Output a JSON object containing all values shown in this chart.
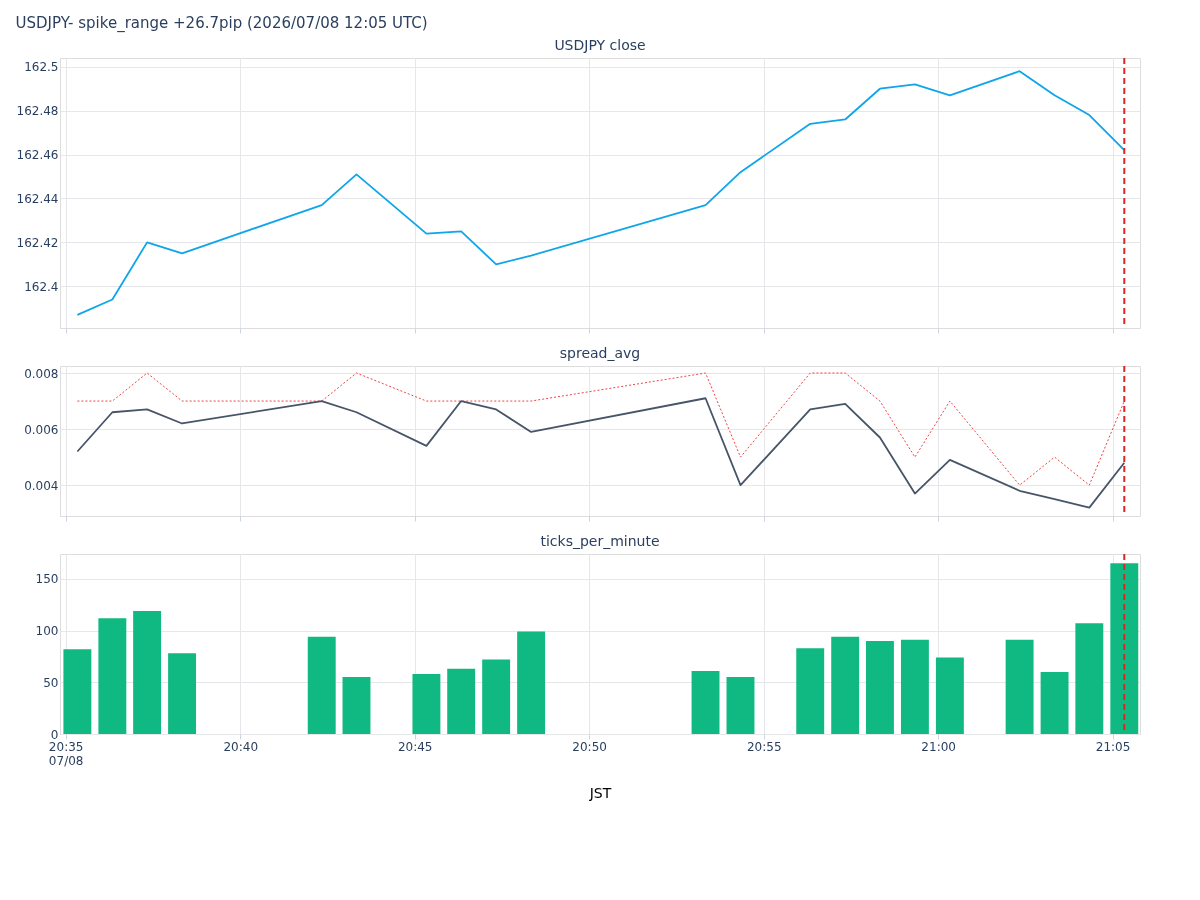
{
  "chart_data": [
    {
      "type": "line",
      "title": "USDJPY- spike_range +26.7pip (2026/07/08 12:05 UTC)",
      "subtitle": "USDJPY close",
      "tick_labels": "y",
      "grid": true,
      "x": [
        20.5889,
        20.6056,
        20.6222,
        20.6389,
        20.7056,
        20.7222,
        20.7556,
        20.7722,
        20.7889,
        20.8056,
        20.8889,
        20.9056,
        20.9389,
        20.9556,
        20.9722,
        20.9889,
        21.0056,
        21.0389,
        21.0556,
        21.0722,
        21.0889
      ],
      "series": [
        {
          "color": "#0ea5e9",
          "line_style": "solid",
          "values": [
            162.387,
            162.394,
            162.42,
            162.415,
            162.437,
            162.451,
            162.424,
            162.425,
            162.41,
            162.414,
            162.437,
            162.452,
            162.474,
            162.476,
            162.49,
            162.492,
            162.487,
            162.498,
            162.487,
            162.478,
            162.462
          ]
        }
      ],
      "xlim": [
        20.5806,
        21.0964
      ],
      "xticks": [
        20.5833,
        20.6667,
        20.75,
        20.8333,
        20.9167,
        21.0,
        21.0833
      ],
      "ylim": [
        162.381,
        162.504
      ],
      "yticks": [
        162.4,
        162.42,
        162.44,
        162.46,
        162.48,
        162.5
      ],
      "ref_lines": [
        {
          "axis": "x",
          "value": 21.0889,
          "color": "#dc2626",
          "line_style": "dashed"
        }
      ]
    },
    {
      "type": "line",
      "title": "spread_avg",
      "tick_labels": "y",
      "grid": true,
      "x": [
        20.5889,
        20.6056,
        20.6222,
        20.6389,
        20.7056,
        20.7222,
        20.7556,
        20.7722,
        20.7889,
        20.8056,
        20.8889,
        20.9056,
        20.9389,
        20.9556,
        20.9722,
        20.9889,
        21.0056,
        21.0389,
        21.0556,
        21.0722,
        21.0889
      ],
      "series": [
        {
          "color": "#ef4444",
          "line_style": "dotted",
          "values": [
            0.007,
            0.007,
            0.008,
            0.007,
            0.007,
            0.008,
            0.007,
            0.007,
            0.007,
            0.007,
            0.008,
            0.005,
            0.008,
            0.008,
            0.007,
            0.005,
            0.007,
            0.004,
            0.005,
            0.004,
            0.007
          ]
        },
        {
          "color": "#475569",
          "line_style": "solid",
          "values": [
            0.0052,
            0.0066,
            0.0067,
            0.0062,
            0.007,
            0.0066,
            0.0054,
            0.007,
            0.0067,
            0.0059,
            0.0071,
            0.004,
            0.0067,
            0.0069,
            0.0057,
            0.0037,
            0.0049,
            0.0038,
            0.0035,
            0.0032,
            0.0048
          ]
        }
      ],
      "xlim": [
        20.5806,
        21.0964
      ],
      "xticks": [
        20.5833,
        20.6667,
        20.75,
        20.8333,
        20.9167,
        21.0,
        21.0833
      ],
      "ylim": [
        0.0029,
        0.00825
      ],
      "yticks": [
        0.004,
        0.006,
        0.008
      ],
      "ref_lines": [
        {
          "axis": "x",
          "value": 21.0889,
          "color": "#dc2626",
          "line_style": "dashed"
        }
      ]
    },
    {
      "type": "bar",
      "title": "ticks_per_minute",
      "xlabel": "JST",
      "grid": true,
      "x": [
        20.5889,
        20.6056,
        20.6222,
        20.6389,
        20.7056,
        20.7222,
        20.7556,
        20.7722,
        20.7889,
        20.8056,
        20.8889,
        20.9056,
        20.9389,
        20.9556,
        20.9722,
        20.9889,
        21.0056,
        21.0389,
        21.0556,
        21.0722,
        21.0889
      ],
      "series": [
        {
          "color": "#10b981",
          "values": [
            82,
            112,
            119,
            78,
            94,
            55,
            58,
            63,
            72,
            99,
            61,
            55,
            83,
            94,
            90,
            91,
            74,
            91,
            60,
            107,
            165
          ]
        }
      ],
      "xlim": [
        20.5806,
        21.0964
      ],
      "xticks": [
        {
          "value": 20.5833,
          "label": "20:35\n07/08"
        },
        {
          "value": 20.6667,
          "label": "20:40"
        },
        {
          "value": 20.75,
          "label": "20:45"
        },
        {
          "value": 20.8333,
          "label": "20:50"
        },
        {
          "value": 20.9167,
          "label": "20:55"
        },
        {
          "value": 21.0,
          "label": "21:00"
        },
        {
          "value": 21.0833,
          "label": "21:05"
        }
      ],
      "ylim": [
        0,
        174
      ],
      "yticks": [
        0,
        50,
        100,
        150
      ],
      "ref_lines": [
        {
          "axis": "x",
          "value": 21.0889,
          "color": "#dc2626",
          "line_style": "dashed"
        }
      ]
    }
  ]
}
